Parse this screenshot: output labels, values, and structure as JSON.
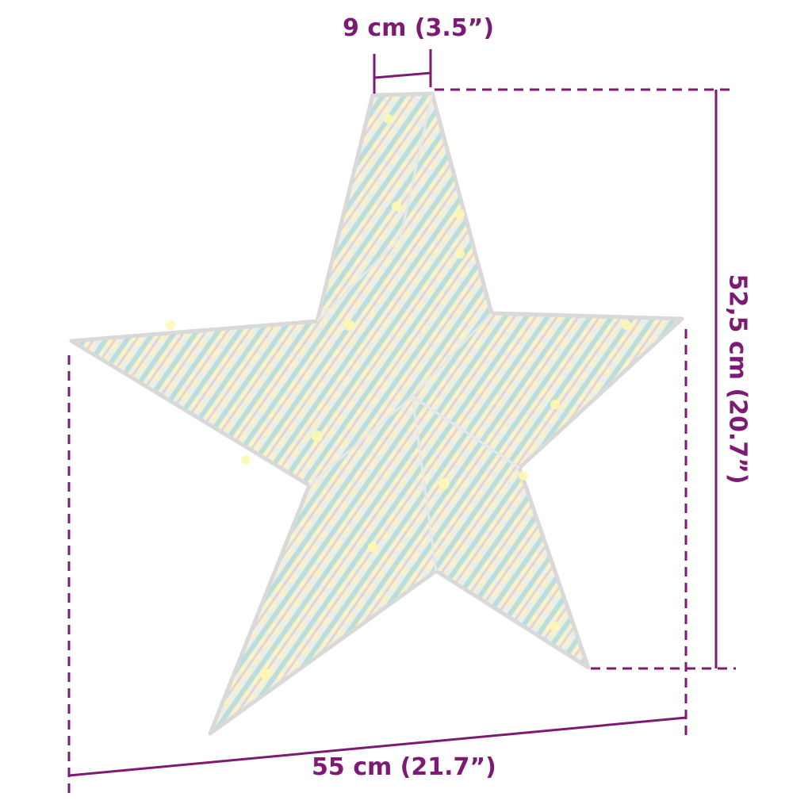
{
  "dimensions": {
    "depth": "9 cm (3.5”)",
    "height": "52,5 cm (20.7”)",
    "width": "55 cm (21.7”)"
  },
  "colors": {
    "dimension": "#7d1a74",
    "star_glow": "#fdf3b0",
    "iridescent": "#7fc8d8"
  },
  "product": {
    "image": "iridescent LED star decoration with warm white lights"
  }
}
